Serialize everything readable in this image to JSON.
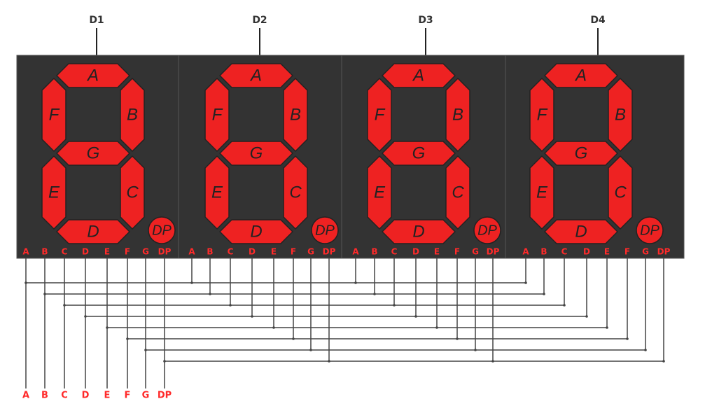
{
  "digits": [
    {
      "label": "D1"
    },
    {
      "label": "D2"
    },
    {
      "label": "D3"
    },
    {
      "label": "D4"
    }
  ],
  "segments": [
    {
      "id": "a",
      "label": "A"
    },
    {
      "id": "b",
      "label": "B"
    },
    {
      "id": "c",
      "label": "C"
    },
    {
      "id": "d",
      "label": "D"
    },
    {
      "id": "e",
      "label": "E"
    },
    {
      "id": "f",
      "label": "F"
    },
    {
      "id": "g",
      "label": "G"
    },
    {
      "id": "dp",
      "label": "DP"
    }
  ],
  "pins": [
    "A",
    "B",
    "C",
    "D",
    "E",
    "F",
    "G",
    "DP"
  ],
  "bottom_pins": [
    "A",
    "B",
    "C",
    "D",
    "E",
    "F",
    "G",
    "DP"
  ],
  "colors": {
    "panel": "#333333",
    "panel_border": "#555555",
    "segment_fill": "#ee2222",
    "segment_stroke": "#222222",
    "segment_text": "#222222",
    "pin_text": "#ff2a2a",
    "wire": "#444444",
    "heading_text": "#333333",
    "background": "#ffffff"
  }
}
